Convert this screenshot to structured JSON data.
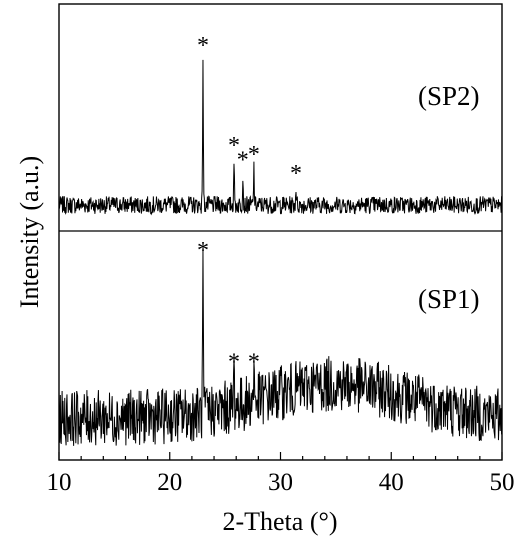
{
  "chart_data": {
    "type": "line",
    "xlabel": "2-Theta (°)",
    "ylabel": "Intensity (a.u.)",
    "xlim": [
      10,
      50
    ],
    "xticks": [
      "10",
      "20",
      "30",
      "40",
      "50"
    ],
    "grid": false,
    "legend": "none",
    "peak_marker": "*",
    "panels": [
      {
        "label": "(SP2)",
        "position": "top",
        "baseline_noise": 0.06,
        "hump": [],
        "peaks": [
          {
            "x": 23.0,
            "y": 1.0
          },
          {
            "x": 25.8,
            "y": 0.32
          },
          {
            "x": 26.6,
            "y": 0.22
          },
          {
            "x": 27.6,
            "y": 0.26
          },
          {
            "x": 31.4,
            "y": 0.13
          }
        ],
        "markers": [
          23.0,
          25.8,
          26.6,
          27.6,
          31.4
        ]
      },
      {
        "label": "(SP1)",
        "position": "bottom",
        "baseline_noise": 0.18,
        "hump": [
          {
            "center": 35.0,
            "height": 0.22,
            "width": 9.0
          }
        ],
        "peaks": [
          {
            "x": 23.0,
            "y": 1.0
          },
          {
            "x": 25.8,
            "y": 0.28
          },
          {
            "x": 27.6,
            "y": 0.28
          }
        ],
        "markers": [
          23.0,
          25.8,
          27.6
        ]
      }
    ]
  }
}
